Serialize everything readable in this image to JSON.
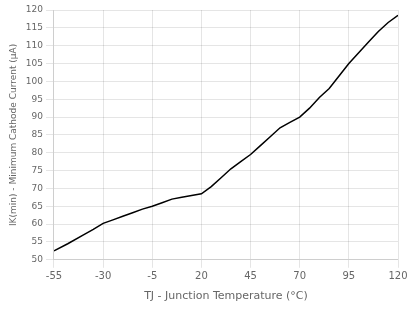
{
  "chart_data": {
    "type": "line",
    "xlabel": "TJ - Junction Temperature (°C)",
    "ylabel": "IK(min) - Minimum Cathode Current (μA)",
    "x": [
      -55,
      -48,
      -40,
      -35,
      -30,
      -25,
      -20,
      -15,
      -10,
      -5,
      0,
      5,
      10,
      15,
      20,
      25,
      30,
      35,
      40,
      45,
      50,
      55,
      60,
      65,
      70,
      75,
      80,
      85,
      90,
      95,
      100,
      105,
      110,
      115,
      120
    ],
    "values": [
      52.5,
      54.5,
      57.0,
      58.5,
      60.2,
      61.2,
      62.2,
      63.2,
      64.2,
      65.0,
      66.0,
      67.0,
      67.5,
      68.0,
      68.5,
      70.5,
      73.0,
      75.5,
      77.5,
      79.5,
      82.0,
      84.5,
      87.0,
      88.5,
      90.0,
      92.5,
      95.5,
      98.0,
      101.5,
      105.0,
      108.0,
      111.0,
      114.0,
      116.5,
      118.5
    ],
    "color": "#000000",
    "xlim": [
      -55,
      120
    ],
    "ylim": [
      50,
      120
    ],
    "xticks": [
      -55,
      -30,
      -5,
      20,
      45,
      70,
      95,
      120
    ],
    "yticks": [
      50,
      55,
      60,
      65,
      70,
      75,
      80,
      85,
      90,
      95,
      100,
      105,
      110,
      115,
      120
    ],
    "grid": true
  }
}
